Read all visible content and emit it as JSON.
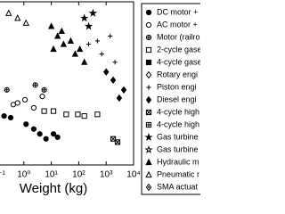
{
  "chart_data": {
    "type": "scatter",
    "x_label": "Weight (kg)",
    "xscale": "log",
    "xlim": [
      0.1,
      10000
    ],
    "xticks": [
      {
        "value": 0.1,
        "label": "10⁻¹"
      },
      {
        "value": 1,
        "label": "10⁰"
      },
      {
        "value": 10,
        "label": "10¹"
      },
      {
        "value": 100,
        "label": "10²"
      },
      {
        "value": 1000,
        "label": "10³"
      },
      {
        "value": 10000,
        "label": "10⁴"
      }
    ],
    "ylim": [
      0,
      100
    ],
    "series": [
      {
        "name": "DC motor +",
        "marker": "circle-filled",
        "color": "#000",
        "x": [
          1.2,
          2.3,
          3.8,
          6.4,
          12,
          17,
          0.19,
          0.33
        ],
        "values": [
          25,
          22,
          19,
          16,
          19,
          17,
          30,
          29
        ]
      },
      {
        "name": "AC motor +",
        "marker": "circle-open",
        "color": "#000",
        "x": [
          0.41,
          0.59,
          1.1,
          2.3,
          4.7
        ],
        "values": [
          37,
          38,
          40,
          35,
          42
        ]
      },
      {
        "name": "Motor (railro",
        "marker": "circle-cross",
        "color": "#000",
        "x": [
          0.24,
          2.6,
          5.5
        ],
        "values": [
          46,
          49,
          46
        ]
      },
      {
        "name": "2-cycle gase",
        "marker": "square-open",
        "color": "#000",
        "x": [
          5.5,
          12,
          35,
          93,
          160,
          480
        ],
        "values": [
          33,
          33,
          31,
          31,
          30,
          31
        ]
      },
      {
        "name": "4-cycle gase",
        "marker": "square-filled",
        "color": "#000",
        "x": [],
        "values": []
      },
      {
        "name": "Rotary engi",
        "marker": "diamond-open",
        "color": "#000",
        "x": [],
        "values": []
      },
      {
        "name": "Piston engi",
        "marker": "plus",
        "color": "#000",
        "x": [
          230,
          480,
          690,
          1400,
          2100
        ],
        "values": [
          74,
          76,
          68,
          79,
          63
        ]
      },
      {
        "name": "Diesel engi",
        "marker": "diamond-filled",
        "color": "#000",
        "x": [
          1000,
          1800,
          3000,
          4400
        ],
        "values": [
          57,
          52,
          41,
          46
        ]
      },
      {
        "name": "4-cycle high",
        "marker": "square-x",
        "color": "#000",
        "x": [
          1800,
          2600
        ],
        "values": [
          16,
          14
        ]
      },
      {
        "name": "4-cycle high",
        "marker": "square-cross",
        "color": "#000",
        "x": [],
        "values": []
      },
      {
        "name": "Gas turbine",
        "marker": "star",
        "color": "#000",
        "x": [
          160,
          230,
          330
        ],
        "values": [
          90,
          85,
          93
        ]
      },
      {
        "name": "Gas turbine",
        "marker": "star-open",
        "color": "#000",
        "x": [],
        "values": []
      },
      {
        "name": "Hydraulic m",
        "marker": "triangle-filled",
        "color": "#000",
        "x": [
          10,
          17,
          28,
          51,
          74,
          110,
          160,
          24,
          12
        ],
        "values": [
          85,
          79,
          74,
          76,
          68,
          71,
          63,
          82,
          71
        ]
      },
      {
        "name": "Pneumatic r",
        "marker": "triangle-open",
        "color": "#000",
        "x": [
          0.28,
          0.59,
          1.2
        ],
        "values": [
          93,
          90,
          87
        ]
      },
      {
        "name": "SMA actuat",
        "marker": "diamond-dot",
        "color": "#000",
        "x": [],
        "values": []
      }
    ]
  }
}
